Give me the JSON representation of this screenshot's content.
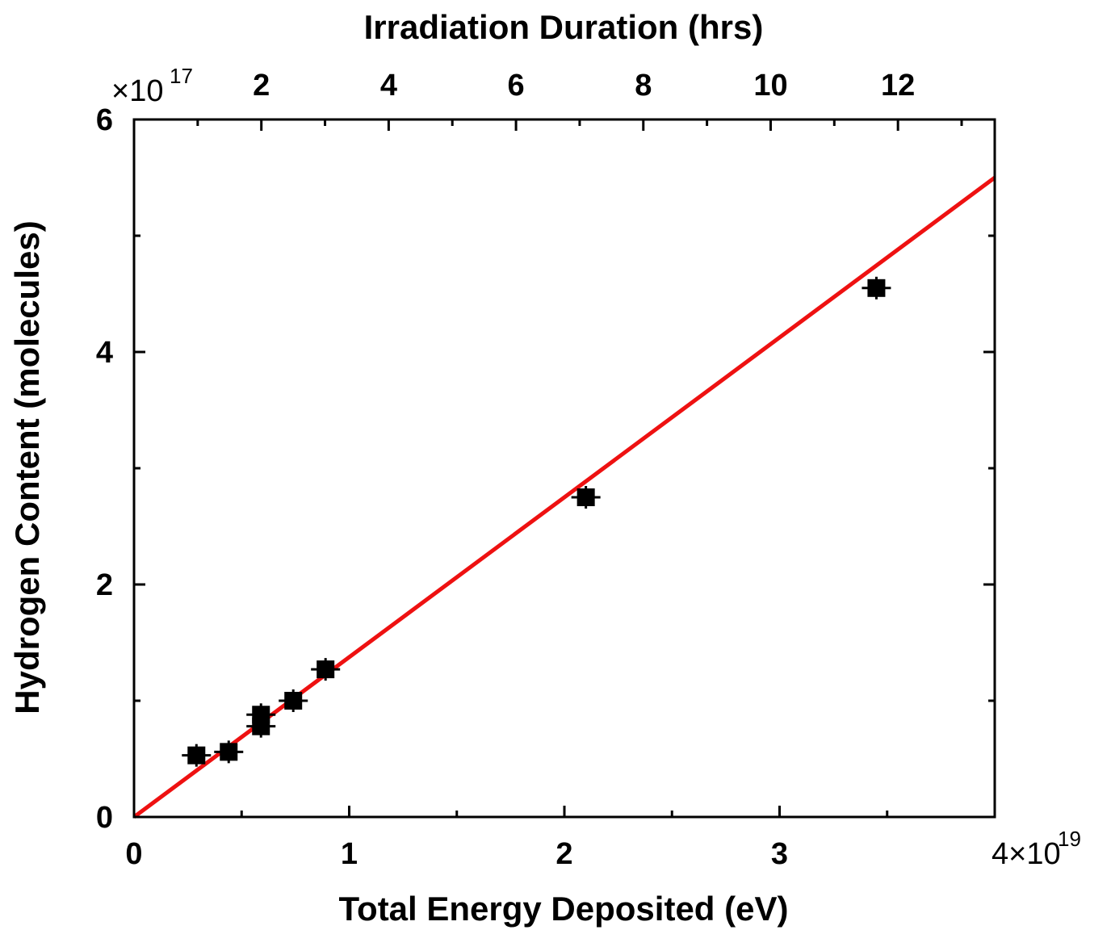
{
  "chart_data": {
    "type": "scatter",
    "title": "",
    "xlabel": "Total Energy Deposited (eV)",
    "ylabel": "Hydrogen Content (molecules)",
    "x2label": "Irradiation Duration (hrs)",
    "xlim": [
      0,
      4e+19
    ],
    "ylim": [
      0,
      6e+17
    ],
    "x_multiplier": {
      "base": "4×10",
      "exponent": "19"
    },
    "y_multiplier": {
      "base": "×10",
      "exponent": "17"
    },
    "x_ticks": [
      {
        "value": 0,
        "label": "0"
      },
      {
        "value": 1e+19,
        "label": "1"
      },
      {
        "value": 2e+19,
        "label": "2"
      },
      {
        "value": 3e+19,
        "label": "3"
      }
    ],
    "y_ticks": [
      {
        "value": 0,
        "label": "0"
      },
      {
        "value": 2e+17,
        "label": "2"
      },
      {
        "value": 4e+17,
        "label": "4"
      },
      {
        "value": 6e+17,
        "label": "6"
      }
    ],
    "x2_ticks": [
      {
        "value": 2,
        "label": "2"
      },
      {
        "value": 4,
        "label": "4"
      },
      {
        "value": 6,
        "label": "6"
      },
      {
        "value": 8,
        "label": "8"
      },
      {
        "value": 10,
        "label": "10"
      },
      {
        "value": 12,
        "label": "12"
      }
    ],
    "x2_hours_per_unit_energy": 3.38e-19,
    "series": [
      {
        "marker": "square",
        "color": "#000000",
        "points": [
          {
            "x": 2.9e+18,
            "y": 5.3e+16
          },
          {
            "x": 4.4e+18,
            "y": 5.6e+16
          },
          {
            "x": 5.9e+18,
            "y": 7.8e+16
          },
          {
            "x": 5.9e+18,
            "y": 8.8e+16
          },
          {
            "x": 7.4e+18,
            "y": 1e+17
          },
          {
            "x": 8.9e+18,
            "y": 1.27e+17
          },
          {
            "x": 2.1e+19,
            "y": 2.75e+17
          },
          {
            "x": 3.45e+19,
            "y": 4.55e+17
          }
        ]
      }
    ],
    "fit_line": {
      "color": "#ee1111",
      "slope": 0.01375,
      "intercept": 0,
      "x_range": [
        0,
        4e+19
      ]
    }
  }
}
